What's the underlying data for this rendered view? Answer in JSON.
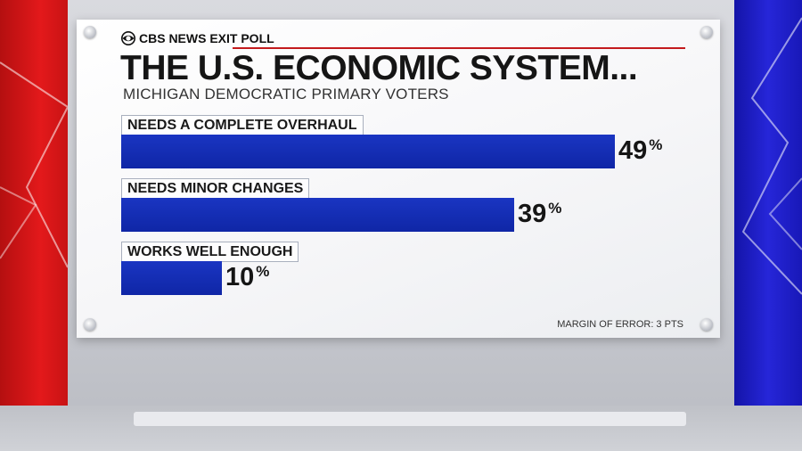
{
  "brand": {
    "logo": "cbs-eye-logo",
    "label": "CBS NEWS EXIT POLL"
  },
  "footnote": "MARGIN OF ERROR: 3 PTS",
  "colors": {
    "bar": "#1428b8",
    "accent_red": "#e3191b",
    "accent_blue": "#2626d8"
  },
  "chart_data": {
    "type": "bar",
    "orientation": "horizontal",
    "title": "THE U.S. ECONOMIC SYSTEM...",
    "subtitle": "MICHIGAN DEMOCRATIC PRIMARY VOTERS",
    "categories": [
      "NEEDS A COMPLETE OVERHAUL",
      "NEEDS MINOR CHANGES",
      "WORKS WELL ENOUGH"
    ],
    "values": [
      49,
      39,
      10
    ],
    "value_labels": [
      "49",
      "39",
      "10"
    ],
    "unit": "%",
    "xlim": [
      0,
      49
    ],
    "grid": false
  }
}
